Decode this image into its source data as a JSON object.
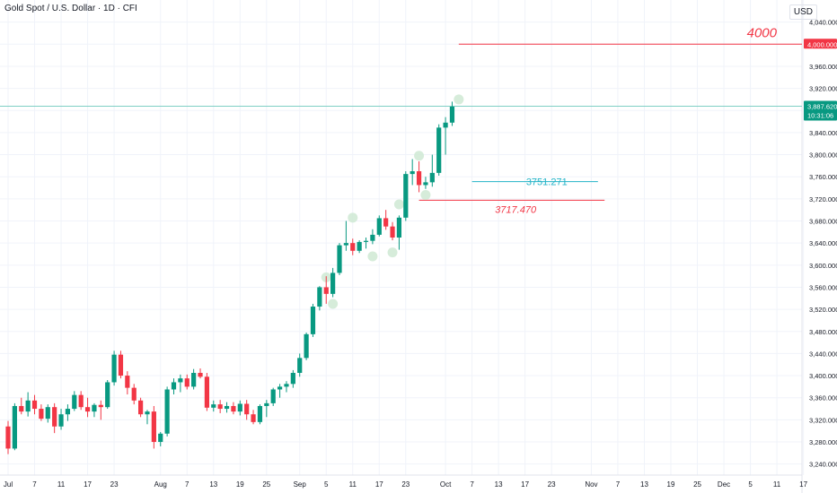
{
  "header": {
    "title": "Gold Spot / U.S. Dollar · 1D · CFI",
    "currency": "USD"
  },
  "colors": {
    "up": "#089981",
    "down": "#f23645",
    "hline_teal": "#22b3c7",
    "hline_red": "#f23645",
    "price_line": "#7fcfc5",
    "marker": "#cfe9d3"
  },
  "chart_data": {
    "type": "candlestick",
    "title": "Gold Spot / U.S. Dollar · 1D · CFI",
    "ylim": [
      3220,
      4080
    ],
    "y_ticks": [
      3240,
      3280,
      3320,
      3360,
      3400,
      3440,
      3480,
      3520,
      3560,
      3600,
      3640,
      3680,
      3720,
      3760,
      3800,
      3840,
      3880,
      3920,
      3960,
      4000,
      4040
    ],
    "y_tick_labels": [
      "3,240.000",
      "3,280.000",
      "3,320.000",
      "3,360.000",
      "3,400.000",
      "3,440.000",
      "3,480.000",
      "3,520.000",
      "3,560.000",
      "3,600.000",
      "3,640.000",
      "3,680.000",
      "3,720.000",
      "3,760.000",
      "3,800.000",
      "3,840.000",
      "3,880.000",
      "3,920.000",
      "3,960.000",
      "4,000.000",
      "4,040.000"
    ],
    "x_labels": [
      {
        "i": 0,
        "t": "Jul"
      },
      {
        "i": 4,
        "t": "7"
      },
      {
        "i": 8,
        "t": "11"
      },
      {
        "i": 12,
        "t": "17"
      },
      {
        "i": 16,
        "t": "23"
      },
      {
        "i": 23,
        "t": "Aug"
      },
      {
        "i": 27,
        "t": "7"
      },
      {
        "i": 31,
        "t": "13"
      },
      {
        "i": 35,
        "t": "19"
      },
      {
        "i": 39,
        "t": "25"
      },
      {
        "i": 44,
        "t": "Sep"
      },
      {
        "i": 48,
        "t": "5"
      },
      {
        "i": 52,
        "t": "11"
      },
      {
        "i": 56,
        "t": "17"
      },
      {
        "i": 60,
        "t": "23"
      },
      {
        "i": 66,
        "t": "Oct"
      },
      {
        "i": 70,
        "t": "7"
      },
      {
        "i": 74,
        "t": "13"
      },
      {
        "i": 78,
        "t": "17"
      },
      {
        "i": 82,
        "t": "23"
      },
      {
        "i": 88,
        "t": "Nov"
      },
      {
        "i": 92,
        "t": "7"
      },
      {
        "i": 96,
        "t": "13"
      },
      {
        "i": 100,
        "t": "19"
      },
      {
        "i": 104,
        "t": "25"
      },
      {
        "i": 108,
        "t": "Dec"
      },
      {
        "i": 112,
        "t": "5"
      },
      {
        "i": 116,
        "t": "11"
      },
      {
        "i": 120,
        "t": "17"
      }
    ],
    "candles": [
      [
        0,
        3308,
        3318,
        3258,
        3268
      ],
      [
        1,
        3268,
        3350,
        3265,
        3345
      ],
      [
        2,
        3345,
        3360,
        3330,
        3335
      ],
      [
        3,
        3335,
        3370,
        3326,
        3355
      ],
      [
        4,
        3355,
        3365,
        3330,
        3340
      ],
      [
        5,
        3340,
        3348,
        3318,
        3322
      ],
      [
        6,
        3322,
        3348,
        3315,
        3343
      ],
      [
        7,
        3343,
        3350,
        3296,
        3308
      ],
      [
        8,
        3308,
        3340,
        3302,
        3330
      ],
      [
        9,
        3330,
        3348,
        3318,
        3340
      ],
      [
        10,
        3340,
        3372,
        3336,
        3365
      ],
      [
        11,
        3365,
        3372,
        3338,
        3343
      ],
      [
        12,
        3343,
        3360,
        3325,
        3335
      ],
      [
        13,
        3335,
        3350,
        3325,
        3347
      ],
      [
        14,
        3347,
        3355,
        3320,
        3343
      ],
      [
        15,
        3343,
        3392,
        3340,
        3388
      ],
      [
        16,
        3388,
        3445,
        3382,
        3438
      ],
      [
        17,
        3438,
        3445,
        3395,
        3400
      ],
      [
        18,
        3400,
        3408,
        3366,
        3378
      ],
      [
        19,
        3378,
        3385,
        3348,
        3355
      ],
      [
        20,
        3355,
        3360,
        3325,
        3330
      ],
      [
        21,
        3330,
        3338,
        3312,
        3335
      ],
      [
        22,
        3335,
        3345,
        3268,
        3280
      ],
      [
        23,
        3280,
        3298,
        3272,
        3295
      ],
      [
        24,
        3295,
        3380,
        3290,
        3375
      ],
      [
        25,
        3375,
        3395,
        3366,
        3388
      ],
      [
        26,
        3388,
        3402,
        3370,
        3395
      ],
      [
        27,
        3395,
        3402,
        3375,
        3380
      ],
      [
        28,
        3380,
        3412,
        3375,
        3405
      ],
      [
        29,
        3405,
        3413,
        3395,
        3398
      ],
      [
        30,
        3398,
        3405,
        3336,
        3342
      ],
      [
        31,
        3342,
        3355,
        3335,
        3348
      ],
      [
        32,
        3348,
        3356,
        3332,
        3340
      ],
      [
        33,
        3340,
        3352,
        3333,
        3345
      ],
      [
        34,
        3345,
        3352,
        3330,
        3335
      ],
      [
        35,
        3335,
        3355,
        3328,
        3349
      ],
      [
        36,
        3349,
        3356,
        3320,
        3330
      ],
      [
        37,
        3330,
        3338,
        3312,
        3316
      ],
      [
        38,
        3316,
        3348,
        3312,
        3345
      ],
      [
        39,
        3345,
        3356,
        3325,
        3350
      ],
      [
        40,
        3350,
        3378,
        3345,
        3375
      ],
      [
        41,
        3375,
        3385,
        3360,
        3380
      ],
      [
        42,
        3380,
        3390,
        3370,
        3385
      ],
      [
        43,
        3385,
        3410,
        3378,
        3405
      ],
      [
        44,
        3405,
        3440,
        3398,
        3432
      ],
      [
        45,
        3432,
        3478,
        3428,
        3475
      ],
      [
        46,
        3475,
        3530,
        3470,
        3525
      ],
      [
        47,
        3525,
        3562,
        3518,
        3560
      ],
      [
        48,
        3560,
        3580,
        3530,
        3548
      ],
      [
        49,
        3548,
        3595,
        3542,
        3586
      ],
      [
        50,
        3586,
        3640,
        3582,
        3636
      ],
      [
        51,
        3636,
        3680,
        3626,
        3640
      ],
      [
        52,
        3640,
        3648,
        3618,
        3626
      ],
      [
        53,
        3626,
        3645,
        3622,
        3642
      ],
      [
        54,
        3642,
        3650,
        3630,
        3644
      ],
      [
        55,
        3644,
        3665,
        3638,
        3655
      ],
      [
        56,
        3655,
        3690,
        3652,
        3685
      ],
      [
        57,
        3685,
        3700,
        3664,
        3670
      ],
      [
        58,
        3670,
        3678,
        3645,
        3650
      ],
      [
        59,
        3650,
        3690,
        3628,
        3686
      ],
      [
        60,
        3686,
        3770,
        3680,
        3765
      ],
      [
        61,
        3765,
        3792,
        3745,
        3770
      ],
      [
        62,
        3770,
        3788,
        3732,
        3745
      ],
      [
        63,
        3745,
        3760,
        3738,
        3750
      ],
      [
        64,
        3750,
        3800,
        3742,
        3767
      ],
      [
        65,
        3767,
        3855,
        3762,
        3849
      ],
      [
        66,
        3849,
        3868,
        3800,
        3858
      ],
      [
        67,
        3858,
        3896,
        3852,
        3887
      ]
    ],
    "horizontal_lines": [
      {
        "value": 4000,
        "label": "4000",
        "color": "#f23645",
        "from_index": 68
      },
      {
        "value": 3751.271,
        "label": "3751.271",
        "color": "#22b3c7",
        "from_index": 70,
        "to_index": 89
      },
      {
        "value": 3717.47,
        "label": "3717.470",
        "color": "#f23645",
        "from_index": 62,
        "to_index": 90
      }
    ],
    "markers": [
      {
        "i": 48,
        "value": 3578
      },
      {
        "i": 49,
        "value": 3530
      },
      {
        "i": 52,
        "value": 3686
      },
      {
        "i": 55,
        "value": 3616
      },
      {
        "i": 59,
        "value": 3710
      },
      {
        "i": 58,
        "value": 3623
      },
      {
        "i": 62,
        "value": 3798
      },
      {
        "i": 63,
        "value": 3727
      },
      {
        "i": 68,
        "value": 3900
      }
    ],
    "price_axis_labels": [
      {
        "value": 4000,
        "text": "4,000.000",
        "color": "#f23645"
      },
      {
        "value": 3887.62,
        "text": "3,887.620",
        "sub": "10:31:06",
        "color": "#089981"
      }
    ],
    "last_price": 3887.62
  }
}
